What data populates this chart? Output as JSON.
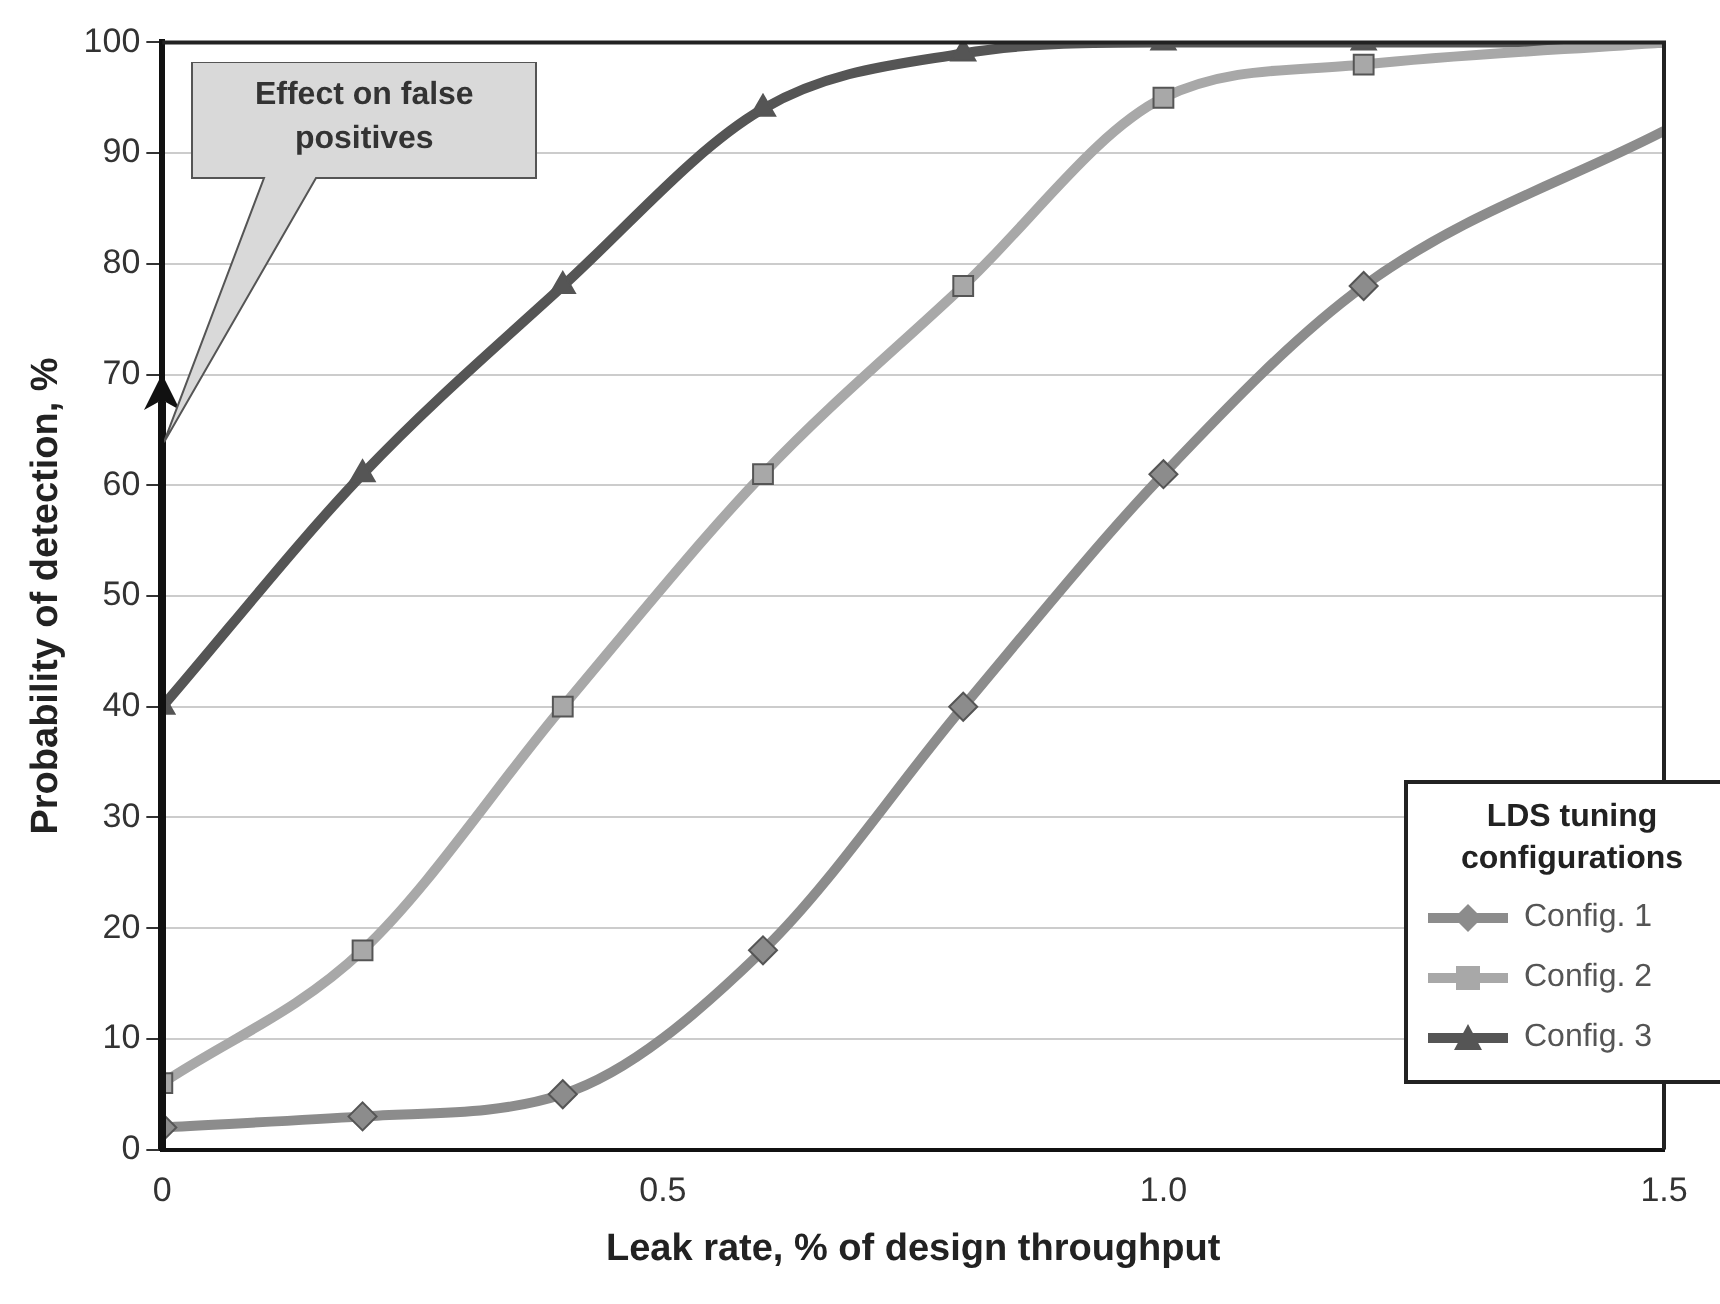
{
  "chart_data": {
    "type": "line",
    "xlabel": "Leak rate, % of design throughput",
    "ylabel": "Probability of detection, %",
    "legend_title": "LDS tuning configurations",
    "annotations": [
      "Effect on false positives"
    ],
    "xlim": [
      0,
      1.5
    ],
    "xticks": [
      0,
      0.5,
      {
        "value": 1,
        "label": "1.0"
      },
      1.5
    ],
    "ylim": [
      0,
      100
    ],
    "yticks": [
      0,
      10,
      20,
      30,
      40,
      50,
      60,
      70,
      80,
      90,
      100
    ],
    "grid": "y",
    "legend": "bottom right",
    "line_style": "solid",
    "series": [
      {
        "name": "Config. 1",
        "color": "#8c8c8c",
        "marker": "diamond",
        "x": [
          0,
          0.2,
          0.4,
          0.6,
          0.8,
          1.0,
          1.2,
          1.5
        ],
        "values": [
          2,
          3,
          5,
          18,
          40,
          61,
          78,
          92
        ]
      },
      {
        "name": "Config. 2",
        "color": "#a8a8a8",
        "marker": "square",
        "x": [
          0,
          0.2,
          0.4,
          0.6,
          0.8,
          1.0,
          1.2,
          1.5
        ],
        "values": [
          6,
          18,
          40,
          61,
          78,
          95,
          98,
          100
        ]
      },
      {
        "name": "Config. 3",
        "color": "#555555",
        "marker": "triangle",
        "x": [
          0,
          0.2,
          0.4,
          0.6,
          0.8,
          1.0,
          1.2,
          1.5
        ],
        "values": [
          40,
          61,
          78,
          94,
          99,
          100,
          100,
          100
        ]
      }
    ]
  }
}
